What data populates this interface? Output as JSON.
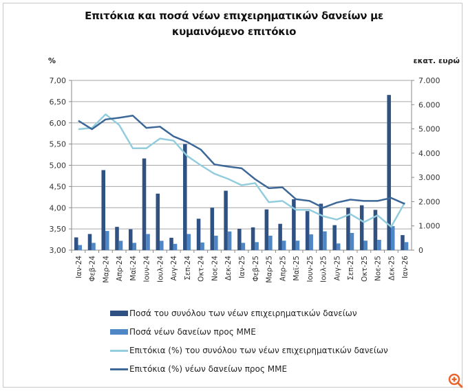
{
  "chart_data": {
    "type": "bar+line",
    "title": "Επιτόκια και ποσά νέων επιχειρηματικών δανείων με κυμαινόμενο επιτόκιο",
    "ylabel_left": "%",
    "ylabel_right": "εκατ. ευρώ",
    "ylim_left": [
      3.0,
      7.0
    ],
    "yticks_left": [
      "3,00",
      "3,50",
      "4,00",
      "4,50",
      "5,00",
      "5,50",
      "6,00",
      "6,50",
      "7,00"
    ],
    "ylim_right": [
      0,
      7000
    ],
    "yticks_right": [
      "0",
      "1.000",
      "2.000",
      "3.000",
      "4.000",
      "5.000",
      "6.000",
      "7.000"
    ],
    "grid": true,
    "legend_position": "bottom",
    "categories": [
      "Ιαν-24",
      "Φεβ-24",
      "Μαρ-24",
      "Απρ-24",
      "Μαϊ-24",
      "Ιουν-24",
      "Ιουλ-24",
      "Αυγ-24",
      "Σεπ-24",
      "Οκτ-24",
      "Νοε-24",
      "Δεκ-24",
      "Ιαν-25",
      "Φεβ-25",
      "Μαρ-25",
      "Απρ-25",
      "Μαϊ-25",
      "Ιουν-25",
      "Ιουλ-25",
      "Αυγ-25",
      "Σεπ-25",
      "Οκτ-25",
      "Νοε-25",
      "Δεκ-25",
      "Ιαν-26"
    ],
    "series": [
      {
        "name": "Ποσά του συνόλου των νέων επιχειρηματικών δανείων",
        "kind": "bar",
        "axis": "right",
        "color": "#2f5283",
        "values": [
          525,
          665,
          3300,
          960,
          860,
          3780,
          2330,
          510,
          4375,
          1295,
          1750,
          2450,
          880,
          940,
          1680,
          1085,
          2100,
          1610,
          1915,
          1030,
          1745,
          1850,
          1660,
          6400,
          620
        ]
      },
      {
        "name": "Ποσά νέων δανείων προς ΜΜΕ",
        "kind": "bar",
        "axis": "right",
        "color": "#4f86c6",
        "values": [
          210,
          300,
          790,
          385,
          300,
          665,
          385,
          260,
          665,
          315,
          595,
          770,
          300,
          330,
          595,
          390,
          390,
          650,
          775,
          275,
          710,
          390,
          425,
          990,
          330
        ]
      },
      {
        "name": "Επιτόκια (%) του συνόλου των νέων επιχειρηματικών δανείων",
        "kind": "line",
        "axis": "left",
        "color": "#93cddd",
        "values": [
          5.85,
          5.88,
          6.2,
          5.95,
          5.4,
          5.4,
          5.63,
          5.58,
          5.22,
          5.0,
          4.8,
          4.68,
          4.53,
          4.58,
          4.13,
          4.16,
          3.95,
          3.95,
          3.8,
          3.72,
          3.85,
          3.66,
          3.82,
          3.55,
          4.12
        ]
      },
      {
        "name": "Επιτόκια (%) νέων δανείων προς ΜΜΕ",
        "kind": "line",
        "axis": "left",
        "color": "#3c6797",
        "values": [
          6.05,
          5.85,
          6.08,
          6.12,
          6.17,
          5.88,
          5.91,
          5.68,
          5.55,
          5.37,
          5.02,
          4.97,
          4.93,
          4.67,
          4.46,
          4.48,
          4.2,
          4.16,
          4.0,
          4.12,
          4.19,
          4.16,
          4.16,
          4.23,
          4.09
        ]
      }
    ]
  },
  "zoom_icon": "zoom-in-icon",
  "accent_color": "#e8652b"
}
